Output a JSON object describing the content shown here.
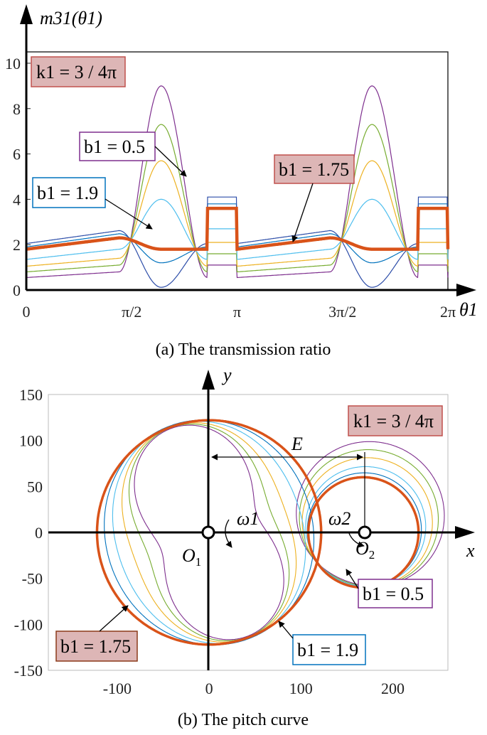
{
  "figure": {
    "caption_a": "(a) The transmission ratio",
    "caption_b": "(b) The pitch curve"
  },
  "chart_data": [
    {
      "type": "line",
      "ylabel": "m31(θ1)",
      "xlabel": "θ1",
      "xlim": [
        0,
        6.2832
      ],
      "ylim": [
        0,
        10.5
      ],
      "x_tick_labels": [
        "0",
        "π/2",
        "π",
        "3π/2",
        "2π"
      ],
      "x_tick_values": [
        0,
        1.5708,
        3.1416,
        4.7124,
        6.2832
      ],
      "y_ticks": [
        0,
        2,
        4,
        6,
        8,
        10
      ],
      "grid": false,
      "annotation_box": "k1 = 3 / 4π",
      "labels": {
        "b05": "b1 = 0.5",
        "b19": "b1 = 1.9",
        "b175": "b1 = 1.75"
      },
      "series": [
        {
          "name": "b1 = 0.5",
          "color": "#7e2f8e",
          "peak": 9.0,
          "flat_start": 0.55,
          "flat_end": 0.8
        },
        {
          "color": "#77ac30",
          "peak": 7.3,
          "flat_start": 0.8,
          "flat_end": 1.1
        },
        {
          "color": "#edb120",
          "peak": 5.7,
          "flat_start": 1.05,
          "flat_end": 1.4
        },
        {
          "color": "#4dbeee",
          "peak": 4.0,
          "flat_start": 1.35,
          "flat_end": 1.8
        },
        {
          "name": "b1 = 1.75",
          "color": "#d95319",
          "peak": 1.8,
          "flat_start": 1.8,
          "flat_end": 2.3,
          "bold": true
        },
        {
          "color": "#0072bd",
          "peak": 1.2,
          "flat_start": 1.9,
          "flat_end": 2.48
        },
        {
          "name": "b1 = 1.9",
          "color": "#2b4ca8",
          "peak": 0.12,
          "flat_start": 2.05,
          "flat_end": 2.62
        }
      ]
    },
    {
      "type": "line",
      "xlabel": "x",
      "ylabel": "y",
      "xlim": [
        -175,
        260
      ],
      "ylim": [
        -150,
        150
      ],
      "x_ticks": [
        -100,
        0,
        100,
        200
      ],
      "y_ticks": [
        -150,
        -100,
        -50,
        0,
        50,
        100,
        150
      ],
      "grid": false,
      "annotation_box": "k1 = 3 / 4π",
      "centers": {
        "O1": [
          0,
          0
        ],
        "O2": [
          168,
          0
        ]
      },
      "center_distance_label": "E",
      "speed_labels": [
        "ω1",
        "ω2"
      ],
      "labels": {
        "b05": "b1 = 0.5",
        "b19": "b1 = 1.9",
        "b175": "b1 = 1.75"
      },
      "series": [
        {
          "name": "b1 = 1.75",
          "color": "#d95319",
          "r1": 122,
          "r2": 60
        },
        {
          "name": "b1 = 1.9",
          "color": "#0072bd"
        },
        {
          "color": "#4dbeee"
        },
        {
          "color": "#edb120"
        },
        {
          "color": "#77ac30"
        },
        {
          "name": "b1 = 0.5",
          "color": "#7e2f8e"
        }
      ]
    }
  ]
}
